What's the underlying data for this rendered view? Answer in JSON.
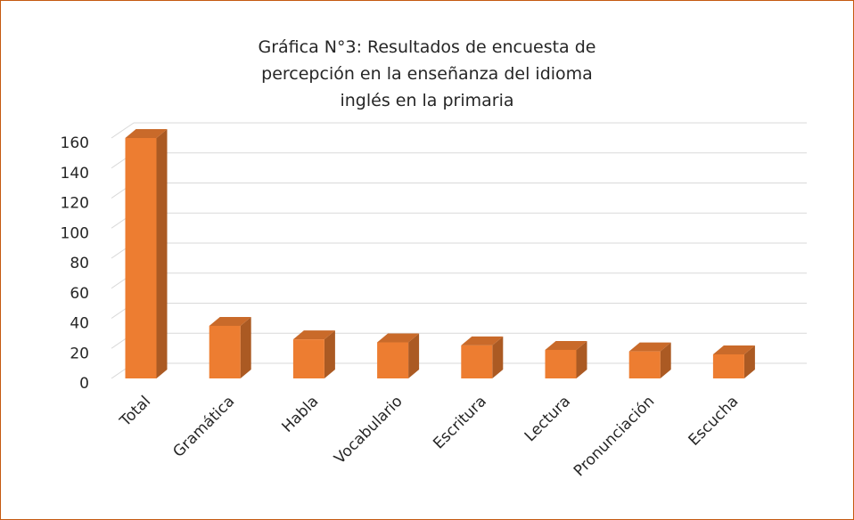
{
  "chart_data": {
    "type": "bar3d",
    "title": "Gráfica N°3: Resultados de encuesta de percepción en la enseñanza del idioma inglés en la primaria",
    "categories": [
      "Total",
      "Gramática",
      "Habla",
      "Vocabulario",
      "Escritura",
      "Lectura",
      "Pronunciación",
      "Escucha"
    ],
    "values": [
      160,
      35,
      26,
      24,
      22,
      19,
      18,
      16
    ],
    "color": "#ed7d31",
    "ylim": [
      0,
      160
    ],
    "yticks": [
      0,
      20,
      40,
      60,
      80,
      100,
      120,
      140,
      160
    ],
    "grid": true
  }
}
